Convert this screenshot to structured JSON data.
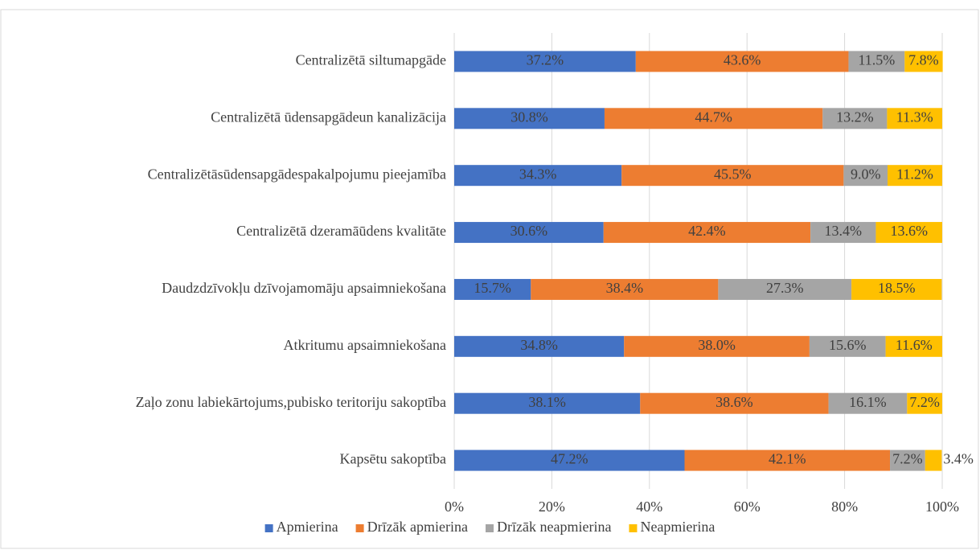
{
  "chart_data": {
    "type": "stacked-bar-horizontal",
    "categories": [
      "Centralizētā siltumapgāde",
      "Centralizētā ūdensapgādeun kanalizācija",
      "Centralizētāsūdensapgādespakalpojumu pieejamība",
      "Centralizētā dzeramāūdens kvalitāte",
      "Daudzdzīvokļu dzīvojamomāju apsaimniekošana",
      "Atkritumu apsaimniekošana",
      "Zaļo zonu labiekārtojums,pubisko teritoriju sakoptība",
      "Kapsētu sakoptība"
    ],
    "series": [
      {
        "name": "Apmierina",
        "color": "#4472c4",
        "values": [
          37.2,
          30.8,
          34.3,
          30.6,
          15.7,
          34.8,
          38.1,
          47.2
        ],
        "value_labels": [
          "37.2%",
          "30.8%",
          "34.3%",
          "30.6%",
          "15.7%",
          "34.8%",
          "38.1%",
          "47.2%"
        ]
      },
      {
        "name": "Drīzāk apmierina",
        "color": "#ed7d31",
        "values": [
          43.6,
          44.7,
          45.5,
          42.4,
          38.4,
          38.0,
          38.6,
          42.1
        ],
        "value_labels": [
          "43.6%",
          "44.7%",
          "45.5%",
          "42.4%",
          "38.4%",
          "38.0%",
          "38.6%",
          "42.1%"
        ]
      },
      {
        "name": "Drīzāk neapmierina",
        "color": "#a5a5a5",
        "values": [
          11.5,
          13.2,
          9.0,
          13.4,
          27.3,
          15.6,
          16.1,
          7.2
        ],
        "value_labels": [
          "11.5%",
          "13.2%",
          "9.0%",
          "13.4%",
          "27.3%",
          "15.6%",
          "16.1%",
          "7.2%"
        ]
      },
      {
        "name": "Neapmierina",
        "color": "#ffc000",
        "values": [
          7.8,
          11.3,
          11.2,
          13.6,
          18.5,
          11.6,
          7.2,
          3.4
        ],
        "value_labels": [
          "7.8%",
          "11.3%",
          "11.2%",
          "13.6%",
          "18.5%",
          "11.6%",
          "7.2%",
          "3.4%"
        ]
      }
    ],
    "xlim": [
      0,
      100
    ],
    "xticks": [
      {
        "value": 0,
        "label": "0%"
      },
      {
        "value": 20,
        "label": "20%"
      },
      {
        "value": 40,
        "label": "40%"
      },
      {
        "value": 60,
        "label": "60%"
      },
      {
        "value": 80,
        "label": "80%"
      },
      {
        "value": 100,
        "label": "100%"
      }
    ],
    "grid": true,
    "legend": "bottom"
  }
}
